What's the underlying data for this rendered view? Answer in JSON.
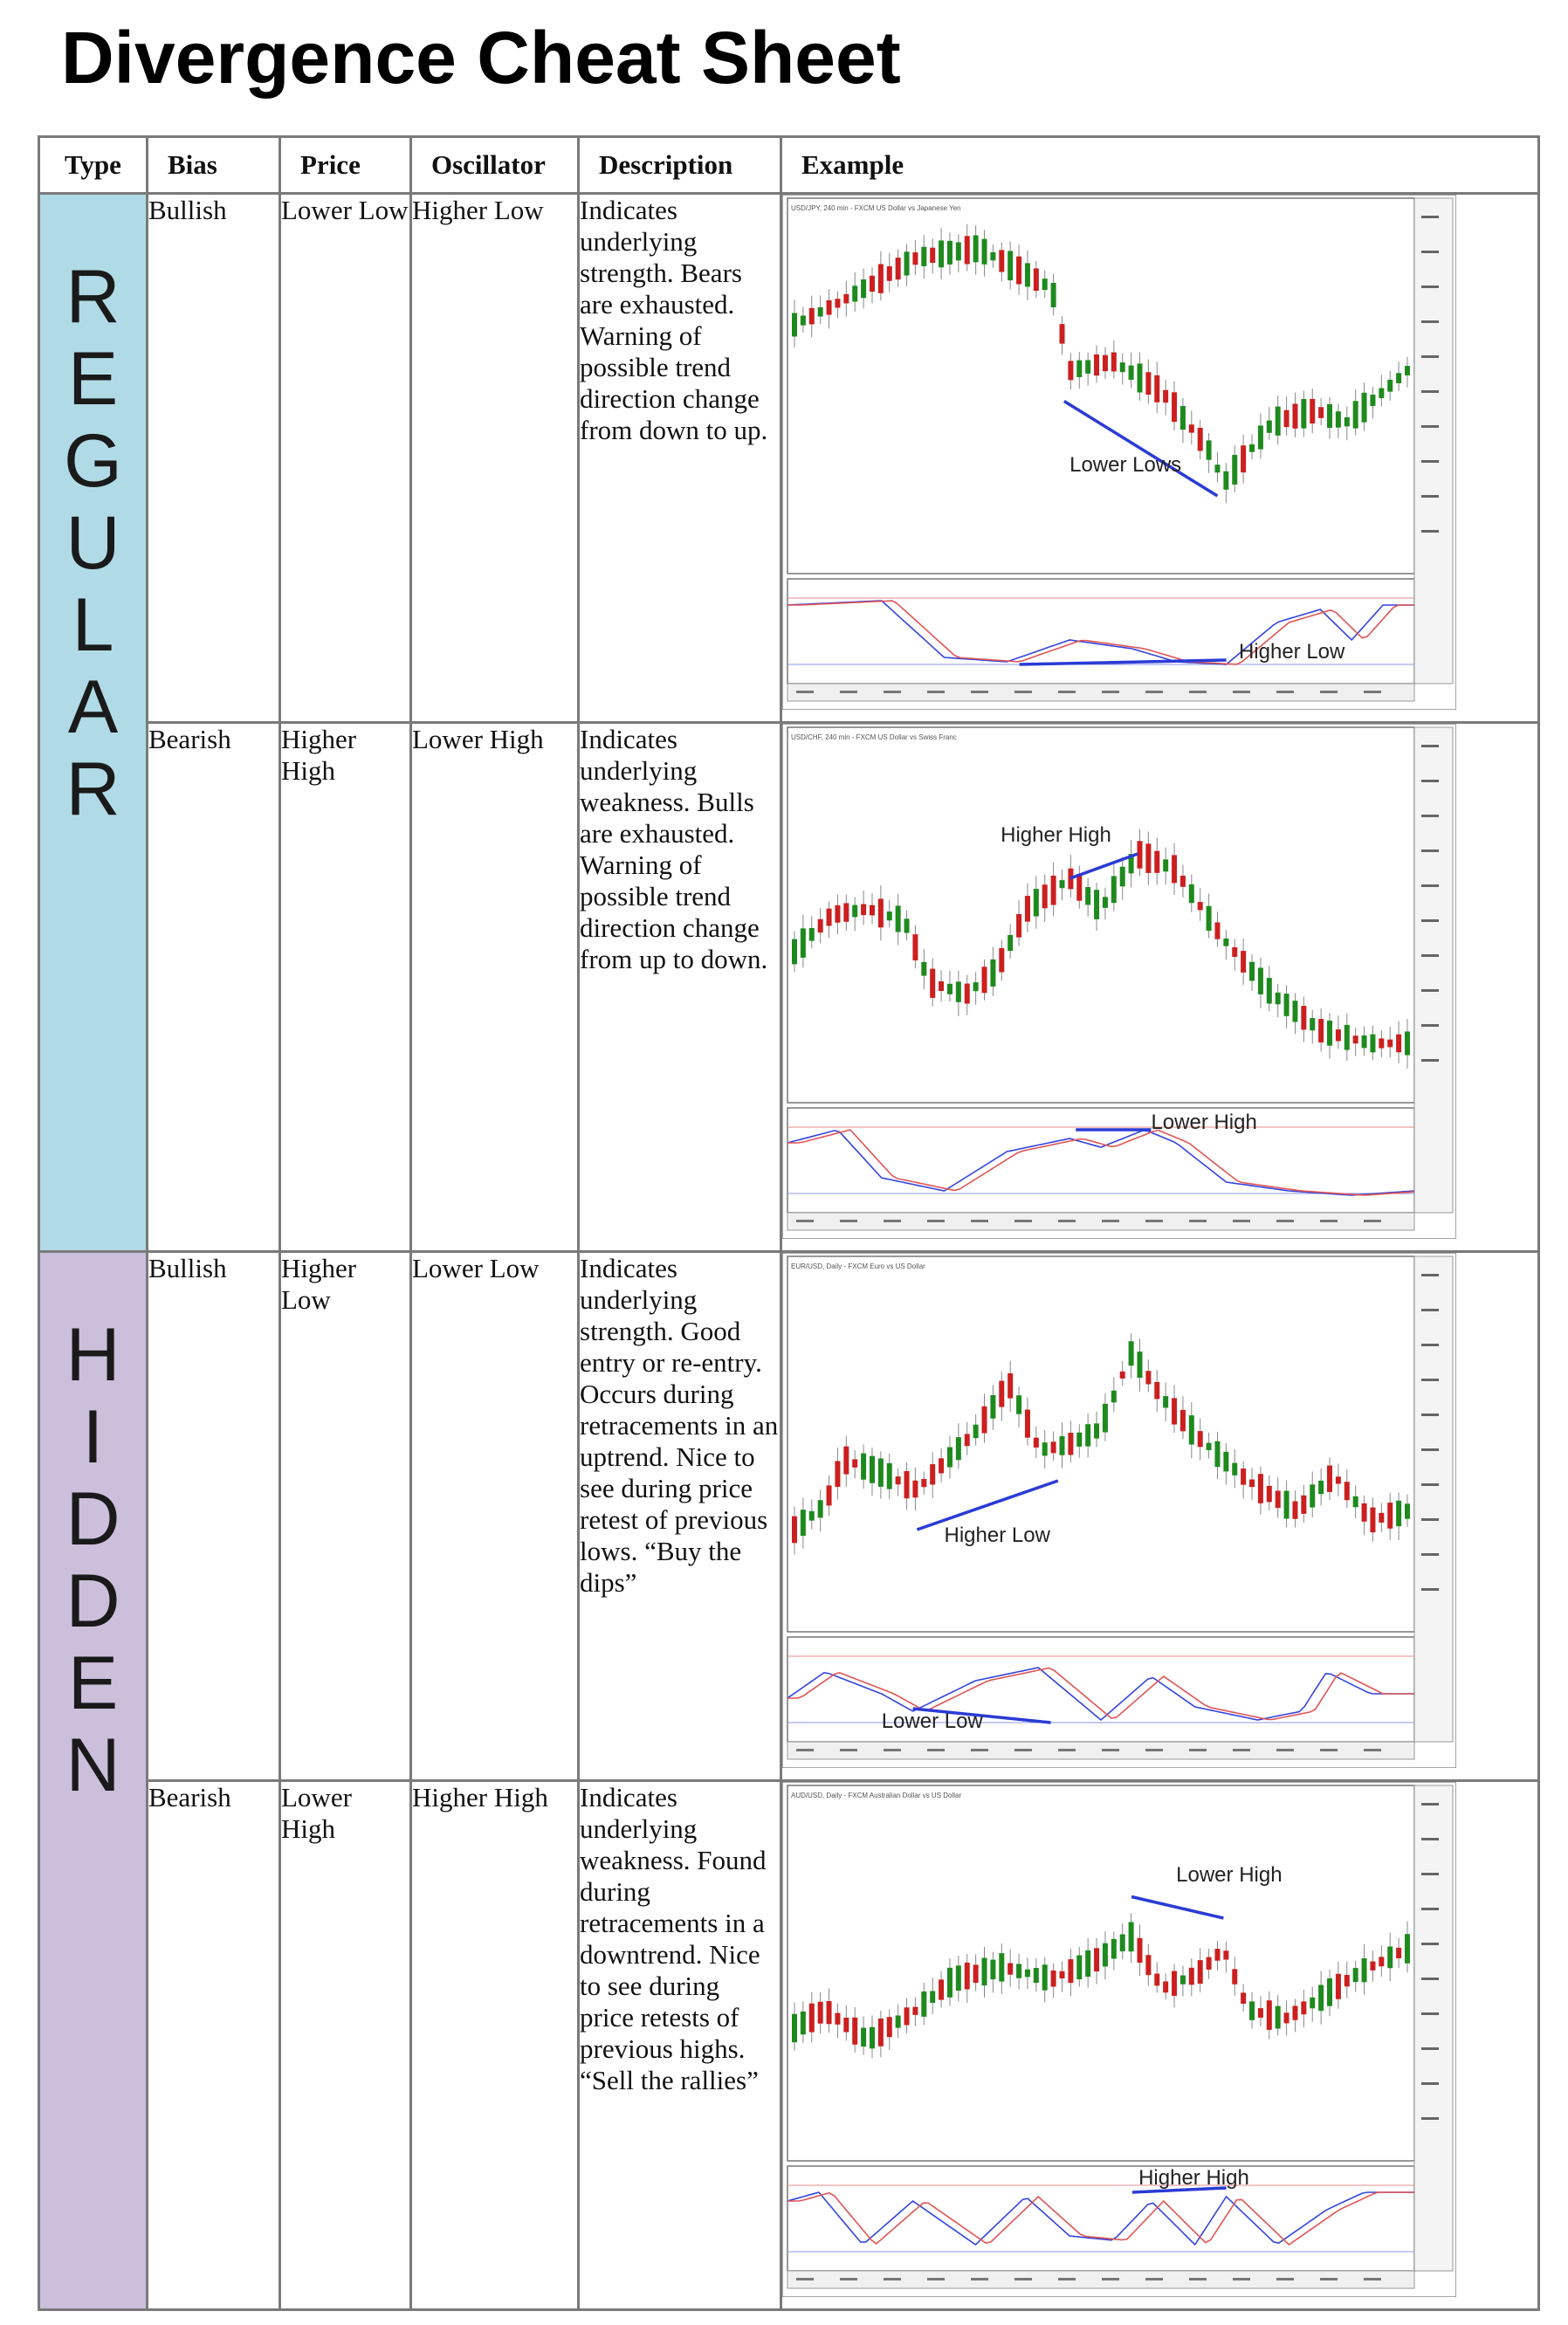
{
  "title": "Divergence Cheat Sheet",
  "headers": {
    "type": "Type",
    "bias": "Bias",
    "price": "Price",
    "oscillator": "Oscillator",
    "description": "Description",
    "example": "Example"
  },
  "groups": {
    "regular": {
      "label": "REGULAR",
      "color": "#b0dbe6"
    },
    "hidden": {
      "label": "HIDDEN",
      "color": "#cbbfdc"
    }
  },
  "rows": [
    {
      "bias": "Bullish",
      "price": "Lower Low",
      "oscillator": "Higher Low",
      "description": "Indicates underlying strength. Bears are exhausted. Warning of possible trend direction change from down to up.",
      "chart_title": "USD/JPY, 240 min - FXCM US Dollar vs Japanese Yen",
      "annotation_price": "Lower Lows",
      "annotation_osc": "Higher Low"
    },
    {
      "bias": "Bearish",
      "price": "Higher High",
      "oscillator": "Lower High",
      "description": "Indicates underlying weakness. Bulls are exhausted. Warning of possible trend direction change from up to down.",
      "chart_title": "USD/CHF, 240 min - FXCM US Dollar vs Swiss Franc",
      "annotation_price": "Higher High",
      "annotation_osc": "Lower High"
    },
    {
      "bias": "Bullish",
      "price": "Higher Low",
      "oscillator": "Lower Low",
      "description": "Indicates underlying strength. Good entry or re-entry. Occurs during retracements in an uptrend. Nice to see during price retest of previous lows. “Buy the dips”",
      "chart_title": "EUR/USD, Daily - FXCM Euro vs US Dollar",
      "annotation_price": "Higher Low",
      "annotation_osc": "Lower Low"
    },
    {
      "bias": "Bearish",
      "price": "Lower High",
      "oscillator": "Higher High",
      "description": "Indicates underlying weakness. Found during retracements in a downtrend. Nice to see during price retests of previous highs. “Sell the rallies”",
      "chart_title": "AUD/USD, Daily - FXCM Australian Dollar vs US Dollar",
      "annotation_price": "Lower High",
      "annotation_osc": "Higher High"
    }
  ],
  "colors": {
    "bull_candle": "#1e8a1e",
    "bear_candle": "#cc1f1f",
    "divergence_line": "#2b3bd6",
    "stoch_k": "#3344dd",
    "stoch_d": "#e05555"
  }
}
